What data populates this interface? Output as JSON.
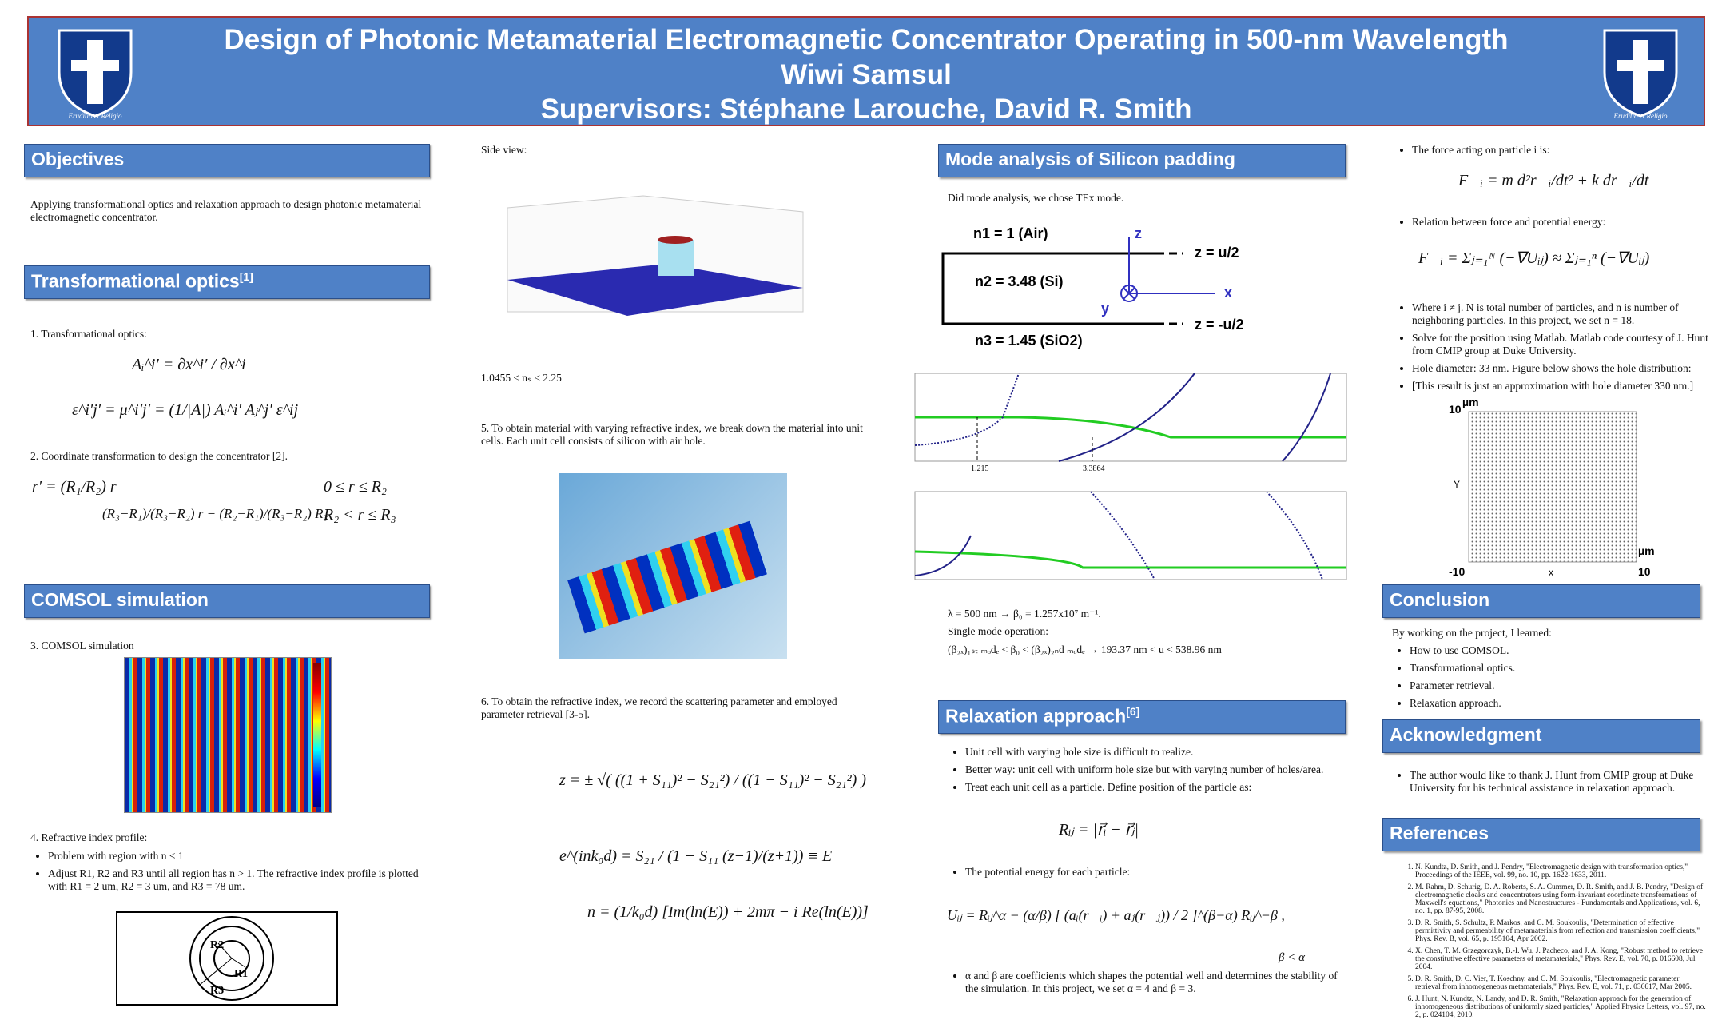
{
  "header": {
    "title": "Design of Photonic Metamaterial Electromagnetic Concentrator Operating in 500-nm Wavelength",
    "author": "Wiwi Samsul",
    "supervisors": "Supervisors: Stéphane Larouche, David R. Smith",
    "motto": "Eruditio et Religio"
  },
  "objectives": {
    "heading": "Objectives",
    "text": "Applying transformational optics and relaxation approach to design photonic metamaterial electromagnetic concentrator."
  },
  "transformational": {
    "heading": "Transformational optics",
    "sup": "[1]",
    "item1": "1.    Transformational optics:",
    "eq1": "Aᵢ^i′  =  ∂x^i′ / ∂x^i",
    "eq2": "ε^i′j′ = μ^i′j′  =  (1/|A|) Aᵢ^i′ Aⱼ^j′ ε^ij",
    "item2": "2.    Coordinate transformation to design the concentrator [2].",
    "eq3a": "r′  =  (R₁/R₂) r",
    "eq3a_cond": "0 ≤ r ≤ R₂",
    "eq3b": "(R₃−R₁)/(R₃−R₂) r − (R₂−R₁)/(R₃−R₂) R₃",
    "eq3b_cond": "R₂ < r ≤ R₃"
  },
  "comsol": {
    "heading": "COMSOL simulation",
    "item3": "3.    COMSOL simulation",
    "item4": "4.  Refractive index profile:",
    "bullets": [
      "Problem with region with n < 1",
      "Adjust R1, R2 and R3 until all region has n > 1. The refractive index profile is plotted with R1 = 2 um, R2 = 3 um, and R3 = 78 um."
    ],
    "labels": [
      "R2",
      "R1",
      "R3"
    ]
  },
  "col2": {
    "side_view": "Side view:",
    "range": "1.0455 ≤ nₛ ≤ 2.25",
    "step5": "5. To obtain material with varying refractive index, we break down the material into unit cells. Each unit cell consists of silicon with air hole.",
    "step6": "6. To obtain the refractive index, we record the scattering parameter and employed parameter retrieval [3-5].",
    "eq_z": "z  =  ± √( ((1 + S₁₁)² − S₂₁²) / ((1 − S₁₁)² − S₂₁²) )",
    "eq_e": "e^(ink₀d)  =  S₂₁ / (1 − S₁₁ (z−1)/(z+1))  ≡  E",
    "eq_n": "n  =  (1/k₀d) [Im(ln(E)) + 2mπ − i Re(ln(E))]"
  },
  "mode": {
    "heading": "Mode analysis of Silicon padding",
    "text": "Did mode analysis, we chose TEx mode.",
    "n1": "n1 = 1   (Air)",
    "n2": "n2 = 3.48  (Si)",
    "n3": "n3 = 1.45  (SiO2)",
    "z": "z",
    "x": "x",
    "y": "y",
    "zu": "z = u/2",
    "zmu": "z = -u/2",
    "mark1": "1.215",
    "mark2": "3.3864",
    "lambda": "λ = 500 nm → β₀ = 1.257x10⁷ m⁻¹.",
    "single": "Single mode operation:",
    "cond": "(β₂ₓ)₁ₛₜ ₘₒdₑ  <  β₀  <  (β₂ₓ)₂ₙd ₘₒdₑ      →   193.37 nm < u < 538.96 nm"
  },
  "relax": {
    "heading": "Relaxation approach",
    "sup": "[6]",
    "bullets": [
      "Unit cell with varying hole size is difficult to realize.",
      "Better way: unit cell with uniform hole size but with varying number of holes/area.",
      "Treat each unit cell as a particle. Define position of the particle as:"
    ],
    "eq_r": "Rᵢⱼ   =   |r⃗ᵢ − r⃗ⱼ|",
    "bullet2": "The potential energy for each particle:",
    "eq_u": "Uᵢⱼ  =  Rᵢⱼ^α − (α/β) [ (aᵢ(r⃗ᵢ) + aⱼ(r⃗ⱼ)) / 2 ]^(β−α) Rᵢⱼ^−β ,",
    "eq_u_cond": "β < α",
    "bullet3": "α and β are coefficients which shapes the potential well and determines the stability of the simulation. In this project, we set α = 4 and β = 3."
  },
  "col4": {
    "bullet1": "The force acting on particle i is:",
    "eq_f": "F⃗ᵢ  =  m d²r⃗ᵢ/dt² + k dr⃗ᵢ/dt",
    "bullet2": "Relation between force and potential energy:",
    "eq_rel": "F⃗ᵢ  =  Σⱼ₌₁ᴺ (−∇Uᵢⱼ)  ≈  Σⱼ₌₁ⁿ (−∇Uᵢⱼ)",
    "bullets": [
      "Where i ≠ j. N is total number of particles, and n is number of neighboring particles. In this project, we set n = 18.",
      "Solve for the position using Matlab. Matlab code courtesy of J. Hunt from CMIP group at Duke University.",
      "Hole diameter: 33 nm. Figure below shows the hole distribution:",
      "[This result is just an approximation with hole diameter 330 nm.]"
    ],
    "plot": {
      "ytop": "10",
      "yunit": "µm",
      "ylabel": "Y",
      "xleft": "-10",
      "xlabel": "x",
      "xright": "10",
      "xunit": "µm"
    }
  },
  "conclusion": {
    "heading": "Conclusion",
    "intro": "By working on the project, I learned:",
    "bullets": [
      "How to use COMSOL.",
      "Transformational optics.",
      "Parameter retrieval.",
      "Relaxation approach."
    ]
  },
  "acknowledgment": {
    "heading": "Acknowledgment",
    "text": "The author would like to thank J. Hunt from CMIP group at Duke University for his technical assistance in relaxation approach."
  },
  "references": {
    "heading": "References",
    "items": [
      "N. Kundtz, D. Smith, and J. Pendry, \"Electromagnetic design with transformation optics,\" Proceedings of the IEEE, vol. 99, no. 10, pp. 1622-1633, 2011.",
      "M. Rahm, D. Schurig, D. A. Roberts, S. A. Cummer, D. R. Smith, and J. B. Pendry, \"Design of electromagnetic cloaks and concentrators using form-invariant coordinate transformations of Maxwell's equations,\" Photonics and Nanostructures - Fundamentals and Applications, vol. 6, no. 1, pp. 87-95, 2008.",
      "D. R. Smith, S. Schultz, P. Markos, and C. M. Soukoulis, \"Determination of effective permittivity and permeability of metamaterials from reflection and transmission coefficients,\" Phys. Rev. B, vol. 65, p. 195104, Apr 2002.",
      "X. Chen, T. M. Grzegorczyk, B.-I. Wu, J. Pacheco, and J. A. Kong, \"Robust method to retrieve the constitutive effective parameters of metamaterials,\" Phys. Rev. E, vol. 70, p. 016608, Jul 2004.",
      "D. R. Smith, D. C. Vier, T. Koschny, and C. M. Soukoulis, \"Electromagnetic parameter retrieval from inhomogeneous metamaterials,\" Phys. Rev. E, vol. 71, p. 036617, Mar 2005.",
      "J. Hunt, N. Kundtz, N. Landy, and D. R. Smith, \"Relaxation approach for the generation of inhomogeneous distributions of uniformly sized particles,\" Applied Physics Letters, vol. 97, no. 2, p. 024104, 2010."
    ]
  }
}
